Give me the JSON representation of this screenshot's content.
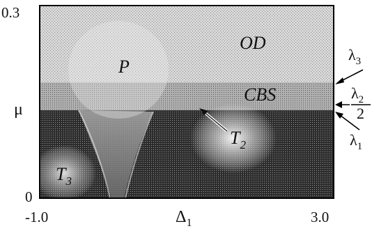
{
  "axes": {
    "x_label": "Δ",
    "x_label_sub": "1",
    "x_ticks": [
      "-1.0",
      "3.0"
    ],
    "y_label": "μ",
    "y_ticks": [
      "0.3",
      "0"
    ]
  },
  "regions": {
    "od": "OD",
    "p": "P",
    "cbs": "CBS",
    "t2": "T",
    "t2_sub": "2",
    "t3": "T",
    "t3_sub": "3"
  },
  "markers": {
    "lambda3": "λ",
    "lambda3_sub": "3",
    "lambda2_num": "λ",
    "lambda2_sub": "2",
    "lambda2_den": "2",
    "lambda1": "λ",
    "lambda1_sub": "1"
  },
  "colors": {
    "dark_region": "#3a3a3a",
    "light_region": "#c9c9c9",
    "cbs_band": "#9e9e9e",
    "frame": "#000000"
  }
}
